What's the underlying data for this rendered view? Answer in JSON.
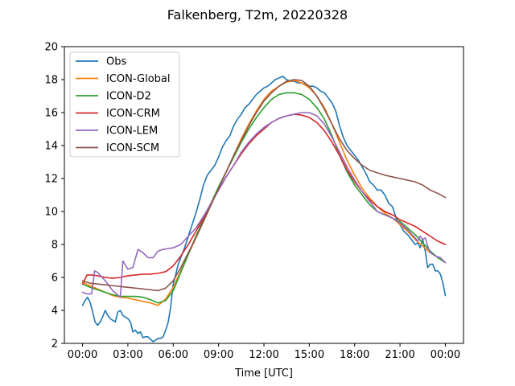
{
  "chart_data": {
    "type": "line",
    "title": "Falkenberg, T2m, 20220328",
    "xlabel": "Time [UTC]",
    "ylabel": "",
    "xlim": [
      -1.2,
      25.2
    ],
    "ylim": [
      2,
      20
    ],
    "x_ticks": [
      {
        "value": 0,
        "label": "00:00"
      },
      {
        "value": 3,
        "label": "03:00"
      },
      {
        "value": 6,
        "label": "06:00"
      },
      {
        "value": 9,
        "label": "09:00"
      },
      {
        "value": 12,
        "label": "12:00"
      },
      {
        "value": 15,
        "label": "15:00"
      },
      {
        "value": 18,
        "label": "18:00"
      },
      {
        "value": 21,
        "label": "21:00"
      },
      {
        "value": 24,
        "label": "00:00"
      }
    ],
    "y_ticks": [
      2,
      4,
      6,
      8,
      10,
      12,
      14,
      16,
      18,
      20
    ],
    "grid": false,
    "legend_position": "top-left",
    "series": [
      {
        "name": "Obs",
        "color": "#1f77b4",
        "x": [
          0,
          0.17,
          0.33,
          0.5,
          0.67,
          0.83,
          1,
          1.17,
          1.33,
          1.5,
          1.67,
          1.83,
          2,
          2.17,
          2.33,
          2.5,
          2.67,
          2.83,
          3,
          3.17,
          3.33,
          3.5,
          3.67,
          3.83,
          4,
          4.17,
          4.33,
          4.5,
          4.67,
          4.83,
          5,
          5.17,
          5.33,
          5.5,
          5.67,
          5.83,
          6,
          6.17,
          6.33,
          6.5,
          6.75,
          7,
          7.25,
          7.5,
          7.75,
          8,
          8.25,
          8.5,
          8.75,
          9,
          9.25,
          9.5,
          9.75,
          10,
          10.25,
          10.5,
          10.75,
          11,
          11.25,
          11.5,
          11.75,
          12,
          12.25,
          12.5,
          12.75,
          13,
          13.25,
          13.5,
          13.75,
          14,
          14.25,
          14.5,
          14.75,
          15,
          15.25,
          15.5,
          15.75,
          16,
          16.25,
          16.5,
          16.75,
          17,
          17.25,
          17.5,
          17.75,
          18,
          18.25,
          18.5,
          18.75,
          19,
          19.25,
          19.5,
          19.75,
          20,
          20.25,
          20.5,
          20.75,
          21,
          21.25,
          21.5,
          21.75,
          22,
          22.17,
          22.33,
          22.5,
          22.67,
          22.83,
          23,
          23.17,
          23.33,
          23.5,
          23.67,
          23.83,
          24
        ],
        "values": [
          4.3,
          4.6,
          4.8,
          4.5,
          3.9,
          3.3,
          3.1,
          3.3,
          3.6,
          4.0,
          3.7,
          3.5,
          3.4,
          3.3,
          3.9,
          4.0,
          3.7,
          3.6,
          3.5,
          3.3,
          2.7,
          2.8,
          2.6,
          2.7,
          2.35,
          2.4,
          2.4,
          2.25,
          2.1,
          2.2,
          2.3,
          2.3,
          2.4,
          2.8,
          3.3,
          4.2,
          5.6,
          6.2,
          6.8,
          7.2,
          7.8,
          8.5,
          9.2,
          9.9,
          10.7,
          11.6,
          12.2,
          12.5,
          12.8,
          13.3,
          13.9,
          14.3,
          14.6,
          15.2,
          15.6,
          15.9,
          16.3,
          16.5,
          16.8,
          17.1,
          17.3,
          17.5,
          17.6,
          17.8,
          18.0,
          18.1,
          18.2,
          18.0,
          17.9,
          17.9,
          17.8,
          17.8,
          17.7,
          17.6,
          17.6,
          17.5,
          17.3,
          17.2,
          16.9,
          16.6,
          16.1,
          15.2,
          14.5,
          14.0,
          13.7,
          13.4,
          13.1,
          12.7,
          12.3,
          11.8,
          11.6,
          11.3,
          11.3,
          11.0,
          10.5,
          10.3,
          9.6,
          9.2,
          8.8,
          8.6,
          8.3,
          8.0,
          8.1,
          7.8,
          8.3,
          7.6,
          6.6,
          6.8,
          6.8,
          6.4,
          6.4,
          6.2,
          5.7,
          4.9
        ]
      },
      {
        "name": "ICON-Global",
        "color": "#ff7f0e",
        "x": [
          0,
          0.5,
          1,
          1.5,
          2,
          2.5,
          3,
          3.5,
          4,
          4.5,
          5,
          5.5,
          6,
          6.5,
          7,
          7.5,
          8,
          8.5,
          9,
          9.5,
          10,
          10.5,
          11,
          11.5,
          12,
          12.5,
          13,
          13.5,
          14,
          14.5,
          15,
          15.5,
          16,
          16.5,
          17,
          17.5,
          18,
          18.5,
          19,
          19.5,
          20,
          20.5,
          21,
          21.5,
          22,
          22.5,
          23
        ],
        "values": [
          5.7,
          5.5,
          5.3,
          5.1,
          4.9,
          4.8,
          4.75,
          4.65,
          4.55,
          4.45,
          4.3,
          4.7,
          5.4,
          6.4,
          7.4,
          8.4,
          9.4,
          10.4,
          11.4,
          12.4,
          13.4,
          14.4,
          15.3,
          16.1,
          16.8,
          17.3,
          17.6,
          17.85,
          17.95,
          17.8,
          17.5,
          17.0,
          16.3,
          15.3,
          14.2,
          13.1,
          12.2,
          11.4,
          10.8,
          10.3,
          9.9,
          9.6,
          9.2,
          8.8,
          8.3,
          7.9,
          7.5
        ]
      },
      {
        "name": "ICON-D2",
        "color": "#2ca02c",
        "x": [
          0,
          0.5,
          1,
          1.5,
          2,
          2.5,
          3,
          3.5,
          4,
          4.5,
          5,
          5.5,
          6,
          6.5,
          7,
          7.5,
          8,
          8.5,
          9,
          9.5,
          10,
          10.5,
          11,
          11.5,
          12,
          12.5,
          13,
          13.5,
          14,
          14.5,
          15,
          15.5,
          16,
          16.5,
          17,
          17.5,
          18,
          18.5,
          19,
          19.5,
          20,
          20.5,
          21,
          21.5,
          22,
          22.5,
          23,
          23.5,
          24
        ],
        "values": [
          5.6,
          5.4,
          5.25,
          5.1,
          4.95,
          4.85,
          4.85,
          4.85,
          4.8,
          4.65,
          4.45,
          4.6,
          5.2,
          6.3,
          7.4,
          8.5,
          9.5,
          10.5,
          11.5,
          12.4,
          13.3,
          14.2,
          15.0,
          15.7,
          16.3,
          16.8,
          17.1,
          17.2,
          17.2,
          17.1,
          16.8,
          16.3,
          15.6,
          14.6,
          13.4,
          12.4,
          11.6,
          11.0,
          10.4,
          10.0,
          9.8,
          9.6,
          9.4,
          9.0,
          8.6,
          8.1,
          7.6,
          7.2,
          6.9
        ]
      },
      {
        "name": "ICON-CRM",
        "color": "#d62728",
        "x": [
          0,
          0.3,
          0.6,
          1,
          1.5,
          2,
          2.5,
          3,
          3.5,
          4,
          4.5,
          5,
          5.5,
          6,
          6.5,
          7,
          7.5,
          8,
          8.5,
          9,
          9.5,
          10,
          10.5,
          11,
          11.5,
          12,
          12.5,
          13,
          13.5,
          14,
          14.5,
          15,
          15.5,
          16,
          16.5,
          17,
          17.5,
          18,
          18.5,
          19,
          19.5,
          20,
          20.5,
          21,
          21.5,
          22,
          22.5,
          23,
          23.5,
          24
        ],
        "values": [
          5.6,
          6.15,
          6.15,
          6.1,
          6.0,
          5.95,
          6.0,
          6.1,
          6.15,
          6.2,
          6.2,
          6.25,
          6.35,
          6.7,
          7.3,
          8.0,
          8.8,
          9.6,
          10.5,
          11.3,
          12.1,
          12.8,
          13.5,
          14.1,
          14.6,
          15.0,
          15.4,
          15.65,
          15.8,
          15.9,
          15.85,
          15.7,
          15.4,
          14.9,
          14.2,
          13.4,
          12.5,
          11.8,
          11.2,
          10.7,
          10.3,
          10.0,
          9.8,
          9.5,
          9.3,
          9.1,
          8.8,
          8.5,
          8.2,
          8.0
        ]
      },
      {
        "name": "ICON-LEM",
        "color": "#9467bd",
        "x": [
          0,
          0.3,
          0.6,
          0.8,
          1,
          1.5,
          2,
          2.5,
          2.67,
          3,
          3.33,
          3.67,
          4,
          4.33,
          4.67,
          5,
          5.33,
          5.67,
          6,
          6.5,
          7,
          7.5,
          8,
          8.5,
          9,
          9.5,
          10,
          10.5,
          11,
          11.5,
          12,
          12.5,
          13,
          13.5,
          14,
          14.5,
          15,
          15.5,
          16,
          16.5,
          17,
          17.5,
          18,
          18.5,
          19,
          19.5,
          20,
          20.5,
          21,
          21.5,
          22,
          22.17,
          22.33,
          22.5,
          22.67,
          22.83,
          23,
          23.33,
          23.67,
          24
        ],
        "values": [
          5.1,
          5.0,
          5.0,
          6.4,
          6.3,
          5.8,
          5.2,
          4.8,
          7.0,
          6.5,
          6.6,
          7.7,
          7.5,
          7.2,
          7.2,
          7.6,
          7.7,
          7.75,
          7.8,
          8.0,
          8.5,
          9.0,
          9.7,
          10.5,
          11.3,
          12.1,
          12.8,
          13.6,
          14.2,
          14.7,
          15.1,
          15.4,
          15.65,
          15.8,
          15.9,
          16.0,
          16.0,
          15.8,
          15.3,
          14.5,
          13.6,
          12.7,
          11.9,
          11.2,
          10.6,
          10.0,
          9.8,
          9.6,
          9.3,
          8.9,
          8.4,
          8.2,
          8.5,
          8.3,
          8.4,
          7.9,
          7.5,
          7.3,
          7.2,
          6.9
        ]
      },
      {
        "name": "ICON-SCM",
        "color": "#8c564b",
        "x": [
          0,
          0.5,
          1,
          1.5,
          2,
          2.5,
          3,
          3.5,
          4,
          4.5,
          5,
          5.5,
          6,
          6.5,
          7,
          7.5,
          8,
          8.5,
          9,
          9.5,
          10,
          10.5,
          11,
          11.5,
          12,
          12.5,
          13,
          13.5,
          14,
          14.5,
          15,
          15.5,
          16,
          16.5,
          17,
          17.5,
          18,
          18.5,
          19,
          19.5,
          20,
          20.5,
          21,
          21.5,
          22,
          22.5,
          23,
          23.5,
          24
        ],
        "values": [
          5.8,
          5.65,
          5.6,
          5.55,
          5.5,
          5.45,
          5.4,
          5.35,
          5.3,
          5.25,
          5.2,
          5.35,
          5.8,
          6.6,
          7.5,
          8.4,
          9.4,
          10.4,
          11.4,
          12.4,
          13.4,
          14.3,
          15.2,
          16.0,
          16.7,
          17.2,
          17.6,
          17.9,
          18.0,
          17.95,
          17.6,
          17.0,
          16.2,
          15.3,
          14.4,
          13.7,
          13.2,
          12.8,
          12.5,
          12.35,
          12.2,
          12.1,
          12.0,
          11.9,
          11.8,
          11.6,
          11.3,
          11.1,
          10.85
        ]
      }
    ]
  }
}
